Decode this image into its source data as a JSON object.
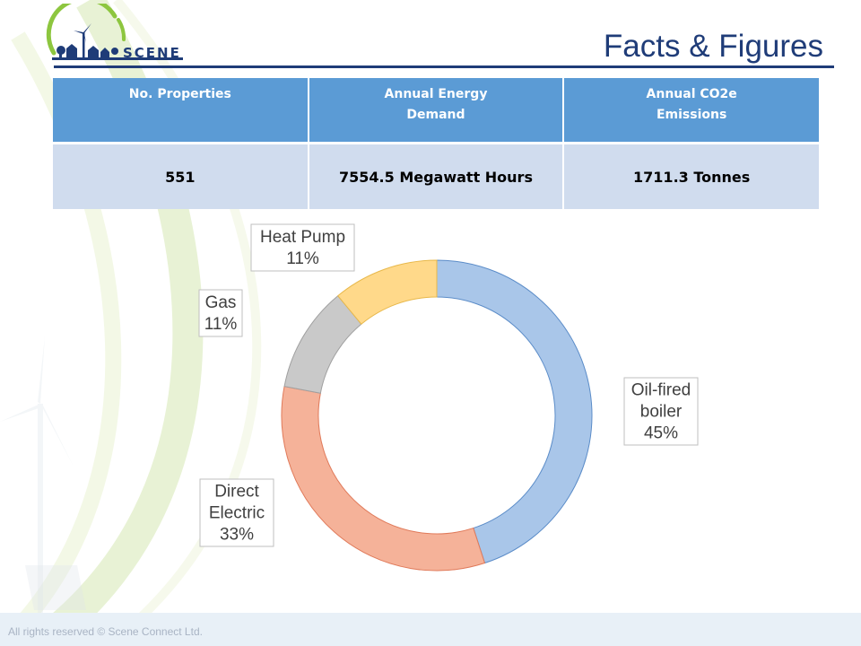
{
  "header": {
    "logo_text": "SCENE",
    "title": "Facts & Figures"
  },
  "table": {
    "headers": [
      [
        "No. Properties"
      ],
      [
        "Annual Energy",
        "Demand"
      ],
      [
        "Annual CO2e",
        "Emissions"
      ]
    ],
    "row": [
      "551",
      "7554.5 Megawatt Hours",
      "1711.3 Tonnes"
    ]
  },
  "chart_data": {
    "type": "pie",
    "subtype": "doughnut",
    "title": "",
    "legend": "none",
    "slices": [
      {
        "label": "Oil-fired boiler",
        "label_lines": [
          "Oil-fired",
          "boiler"
        ],
        "value": 45,
        "value_text": "45%",
        "color": "#a9c6e9",
        "stroke": "#5b8cc8"
      },
      {
        "label": "Direct Electric",
        "label_lines": [
          "Direct",
          "Electric"
        ],
        "value": 33,
        "value_text": "33%",
        "color": "#f5b299",
        "stroke": "#e07a5a"
      },
      {
        "label": "Gas",
        "label_lines": [
          "Gas"
        ],
        "value": 11,
        "value_text": "11%",
        "color": "#c9c9c9",
        "stroke": "#a0a0a0"
      },
      {
        "label": "Heat Pump",
        "label_lines": [
          "Heat Pump"
        ],
        "value": 11,
        "value_text": "11%",
        "color": "#ffd98a",
        "stroke": "#e8b84a"
      }
    ]
  },
  "footer": {
    "text": "All rights reserved © Scene Connect Ltd."
  },
  "colors": {
    "title": "#1f3c78",
    "table_header": "#5b9bd5",
    "table_body": "#d0dcee",
    "accent_green": "#8dc63f"
  }
}
